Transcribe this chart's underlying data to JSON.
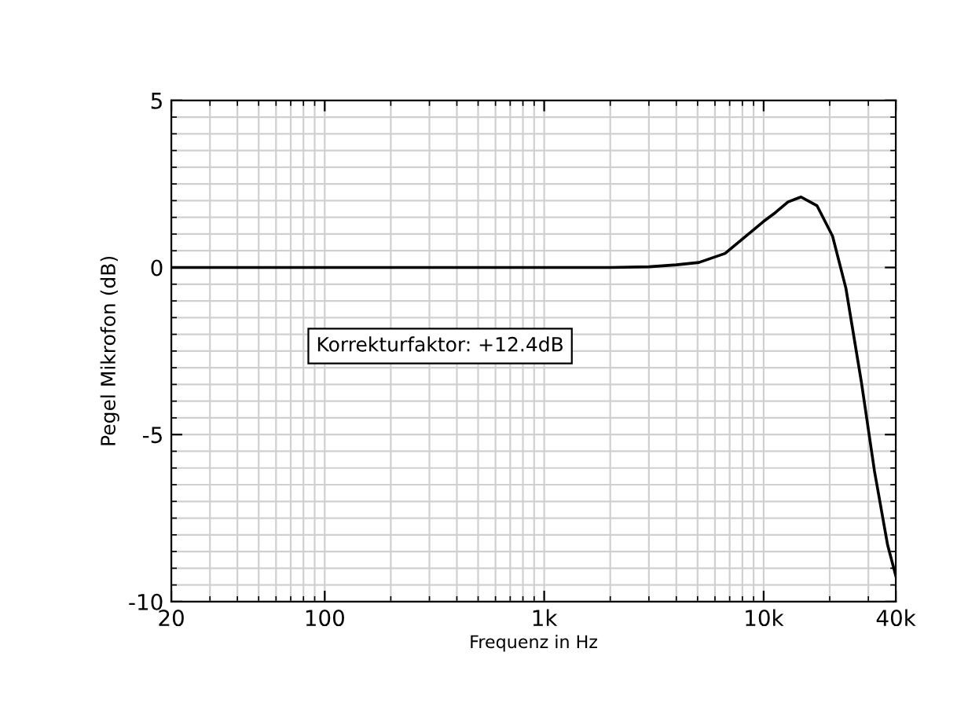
{
  "chart_data": {
    "type": "line",
    "xlabel": "Frequenz in Hz",
    "ylabel": "Pegel Mikrofon (dB)",
    "log": "x",
    "xlim": [
      20,
      40000
    ],
    "xticks": [
      20,
      100,
      {
        "value": 1000,
        "label": "1k"
      },
      {
        "value": 10000,
        "label": "10k"
      },
      {
        "value": 40000,
        "label": "40k"
      }
    ],
    "ylim": [
      -10,
      5
    ],
    "yticks": [
      -10,
      -5,
      0,
      5
    ],
    "grid": true,
    "line_style": "solid",
    "marker": "none",
    "annotations": [
      "Korrekturfaktor: +12.4dB"
    ],
    "series": [
      {
        "color": "#000000",
        "x": [
          20,
          100,
          1000,
          2000,
          3000,
          4000,
          5070,
          6670,
          8300,
          10000,
          11300,
          12900,
          14800,
          17500,
          20600,
          23700,
          27900,
          32000,
          36700,
          40000
        ],
        "values": [
          0,
          0,
          0,
          0,
          0.02,
          0.08,
          0.15,
          0.42,
          0.94,
          1.38,
          1.64,
          1.96,
          2.11,
          1.85,
          0.94,
          -0.62,
          -3.44,
          -6.1,
          -8.3,
          -9.23
        ]
      }
    ]
  }
}
